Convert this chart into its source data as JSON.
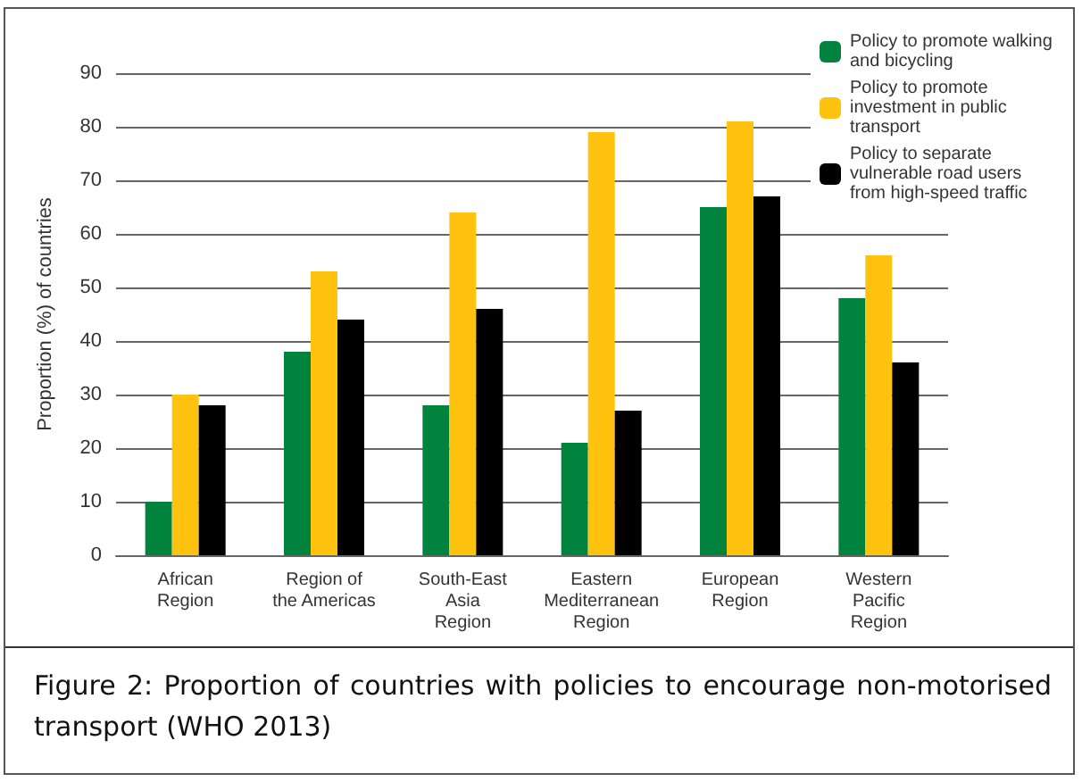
{
  "chart_data": {
    "type": "bar",
    "ylabel": "Proportion (%) of countries",
    "categories": [
      "African\nRegion",
      "Region of\nthe Americas",
      "South-East\nAsia\nRegion",
      "Eastern\nMediterranean\nRegion",
      "European\nRegion",
      "Western\nPacific\nRegion"
    ],
    "series": [
      {
        "name": "Policy to promote walking and bicycling",
        "color": "#00843d",
        "values": [
          10,
          38,
          28,
          21,
          65,
          48
        ]
      },
      {
        "name": "Policy to promote investment in public transport",
        "color": "#ffc20e",
        "values": [
          30,
          53,
          64,
          79,
          81,
          56
        ]
      },
      {
        "name": "Policy to separate vulnerable road users from high-speed traffic",
        "color": "#000000",
        "values": [
          28,
          44,
          46,
          27,
          67,
          36
        ]
      }
    ],
    "ylim": [
      0,
      90
    ],
    "yticks": [
      0,
      10,
      20,
      30,
      40,
      50,
      60,
      70,
      80,
      90
    ],
    "grid": "y",
    "legend": "top right",
    "annotations": [
      "Figure 2: Proportion of countries with policies to encourage non-motorised transport (WHO 2013)"
    ]
  }
}
